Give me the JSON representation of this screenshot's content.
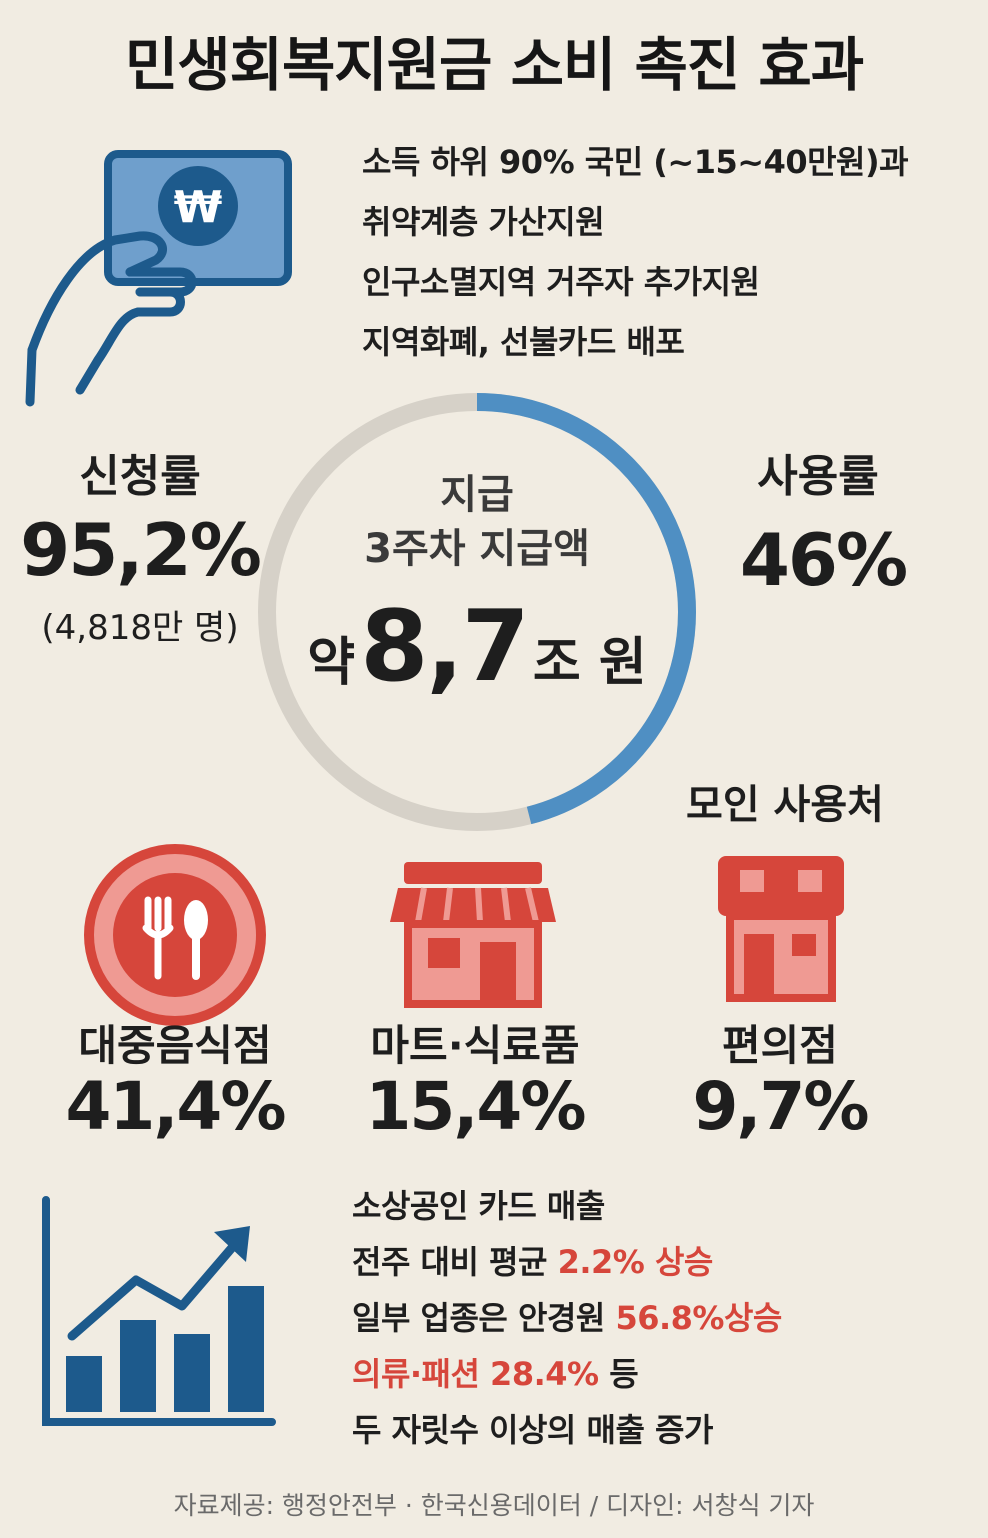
{
  "title": "민생회복지원금 소비 촉진 효과",
  "info": {
    "lines": [
      "소득 하위 90% 국민 (~15~40만원)과",
      "취약계층 가산지원",
      "인구소멸지역 거주자 추가지원",
      "지역화폐, 선불카드 배포"
    ],
    "won_symbol": "₩"
  },
  "application": {
    "label": "신청률",
    "value": "95,2%",
    "sub": "(4,818만 명)"
  },
  "usage": {
    "label": "사용률",
    "value": "46%",
    "ring_fraction": 0.46
  },
  "payout": {
    "line1": "지급",
    "line2": "3주차 지급액",
    "prefix": "약",
    "amount": "8,7",
    "unit": "조 원"
  },
  "venues": {
    "heading": "모인 사용처",
    "items": [
      {
        "label": "대중음식점",
        "value": "41,4%"
      },
      {
        "label": "마트·식료품",
        "value": "15,4%"
      },
      {
        "label": "편의점",
        "value": "9,7%"
      }
    ]
  },
  "sales": {
    "line1": "소상공인 카드 매출",
    "line2_a": "전주 대비 평균 ",
    "line2_b": "2.2% 상승",
    "line3_a": "일부 업종은 안경원 ",
    "line3_b": "56.8%상승",
    "line4_a": "의류·패션 28.4%",
    "line4_b": " 등",
    "line5": "두 자릿수 이상의 매출 증가"
  },
  "footer": "자료제공: 행정안전부 · 한국신용데이터 / 디자인: 서창식 기자",
  "colors": {
    "background": "#f1ece2",
    "navy": "#1d5a8c",
    "card_blue": "#6f9fcc",
    "ring_blue": "#4f8fc3",
    "ring_gray": "#d6d1c8",
    "red": "#d6463b",
    "pink": "#ef9a93"
  }
}
